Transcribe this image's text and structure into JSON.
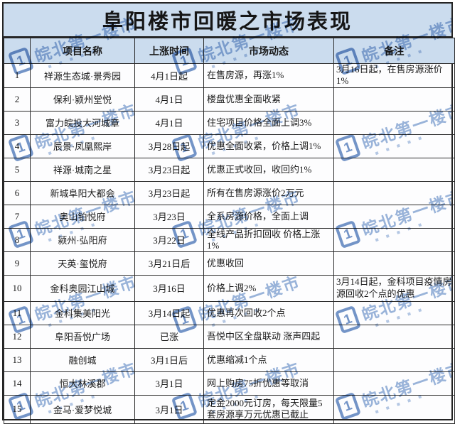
{
  "title": "阜阳楼市回暖之市场表现",
  "watermark": {
    "logo_glyph": "1",
    "text": "皖北第一楼市"
  },
  "colors": {
    "band_blue": "#cbdcee",
    "grid": "#2b2b2b",
    "text": "#1a1a1a",
    "watermark_logo": "#7495c8",
    "watermark_text": "#9ab5da"
  },
  "table": {
    "headers": [
      "",
      "项目名称",
      "上涨时间",
      "市场动态",
      "备注"
    ],
    "rows": [
      {
        "no": "1",
        "name": "祥源生态城·景秀园",
        "time": "4月1日起",
        "dynamic": "在售房源，再涨1%",
        "note": "3月16日起，在售房源涨价1%"
      },
      {
        "no": "2",
        "name": "保利·颍州堂悦",
        "time": "4月1日",
        "dynamic": "楼盘优惠全面收紧",
        "note": ""
      },
      {
        "no": "3",
        "name": "富力皖投大河城章",
        "time": "4月1日",
        "dynamic": "住宅项目价格全面上调3%",
        "note": ""
      },
      {
        "no": "4",
        "name": "辰景·凤凰熙岸",
        "time": "3月28日起",
        "dynamic": "优惠全面收紧，价格上调1%",
        "note": ""
      },
      {
        "no": "5",
        "name": "祥源·城南之星",
        "time": "3月23日起",
        "dynamic": "优惠正式收回，收回约1%",
        "note": ""
      },
      {
        "no": "6",
        "name": "新城阜阳大都会",
        "time": "3月23日起",
        "dynamic": "所有在售房源涨价2万元",
        "note": ""
      },
      {
        "no": "7",
        "name": "奥山铂悦府",
        "time": "3月23日",
        "dynamic": "全系房源价格，全面上调",
        "note": ""
      },
      {
        "no": "8",
        "name": "颍州·弘阳府",
        "time": "3月22日",
        "dynamic": "全线产品折扣回收 价格上涨1%",
        "note": ""
      },
      {
        "no": "9",
        "name": "天英·玺悦府",
        "time": "3月21日后",
        "dynamic": "优惠收回",
        "note": ""
      },
      {
        "no": "10",
        "name": "金科奥园江山城",
        "time": "3月16日",
        "dynamic": "价格上调2%",
        "note": "3月14日起，金科项目疫情房源回收2个点的优惠"
      },
      {
        "no": "11",
        "name": "金科集美阳光",
        "time": "3月14日起",
        "dynamic": "优惠再次回收2个点",
        "note": ""
      },
      {
        "no": "12",
        "name": "阜阳吾悦广场",
        "time": "已涨",
        "dynamic": "吾悦中区全盘联动 涨声四起",
        "note": ""
      },
      {
        "no": "13",
        "name": "融创城",
        "time": "3月1日后",
        "dynamic": "优惠缩减1个点",
        "note": ""
      },
      {
        "no": "14",
        "name": "恒大林溪郡",
        "time": "3月1日",
        "dynamic": "网上购房75折优惠等取消",
        "note": ""
      },
      {
        "no": "15",
        "name": "金马·爱梦悦城",
        "time": "3月1日",
        "dynamic": "定金2000元订房，每天限量5套房源享万元优惠已截止",
        "note": ""
      }
    ]
  }
}
